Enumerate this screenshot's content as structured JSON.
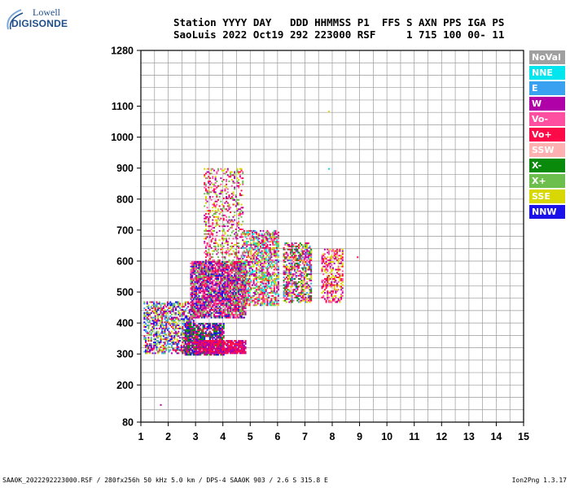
{
  "logo": {
    "top": "Lowell",
    "bottom": "DIGISONDE"
  },
  "header": {
    "line1": "Station YYYY DAY   DDD HHMMSS P1  FFS S AXN PPS IGA PS",
    "line2": "SaoLuis 2022 Oct19 292 223000 RSF     1 715 100 00- 11"
  },
  "legend": [
    {
      "label": "NoVal",
      "color": "#a0a0a0"
    },
    {
      "label": "NNE",
      "color": "#00e5ee"
    },
    {
      "label": "E",
      "color": "#3aa0f0"
    },
    {
      "label": "W",
      "color": "#b000a8"
    },
    {
      "label": "Vo-",
      "color": "#ff4fa0"
    },
    {
      "label": "Vo+",
      "color": "#ff0a48"
    },
    {
      "label": "SSW",
      "color": "#ffb0b0"
    },
    {
      "label": "X-",
      "color": "#0a8a0a"
    },
    {
      "label": "X+",
      "color": "#6cbf4c"
    },
    {
      "label": "SSE",
      "color": "#d8d800"
    },
    {
      "label": "NNW",
      "color": "#1a12e8"
    }
  ],
  "footer": {
    "left": "SAA0K_2022292223000.RSF / 280fx256h 50 kHz 5.0 km / DPS-4 SAA0K 903 / 2.6 S 315.8 E",
    "right": "Ion2Png 1.3.17"
  },
  "chart_data": {
    "type": "scatter",
    "xlim": [
      1,
      15
    ],
    "ylim": [
      80,
      1280
    ],
    "x_ticks": [
      1,
      2,
      3,
      4,
      5,
      6,
      7,
      8,
      9,
      10,
      11,
      12,
      13,
      14,
      15
    ],
    "y_ticks": [
      80,
      200,
      300,
      400,
      500,
      600,
      700,
      800,
      900,
      1000,
      1100,
      1280
    ],
    "grid": true,
    "legend_position": "right",
    "clusters": [
      {
        "x": [
          1.1,
          2.9
        ],
        "y": [
          305,
          470
        ],
        "series": [
          "W",
          "Vo+",
          "NNW",
          "E",
          "X+",
          "SSE"
        ],
        "density": 0.55
      },
      {
        "x": [
          2.6,
          4.0
        ],
        "y": [
          300,
          400
        ],
        "series": [
          "W",
          "Vo+",
          "NNW",
          "X-"
        ],
        "density": 0.8
      },
      {
        "x": [
          3.0,
          4.8
        ],
        "y": [
          305,
          345
        ],
        "series": [
          "W",
          "Vo+"
        ],
        "density": 0.9
      },
      {
        "x": [
          2.8,
          4.8
        ],
        "y": [
          420,
          600
        ],
        "series": [
          "W",
          "Vo+",
          "Vo-",
          "NNW",
          "X+"
        ],
        "density": 0.85
      },
      {
        "x": [
          3.3,
          4.7
        ],
        "y": [
          600,
          900
        ],
        "series": [
          "W",
          "Vo+",
          "Vo-",
          "SSE",
          "X+"
        ],
        "density": 0.3
      },
      {
        "x": [
          4.7,
          6.0
        ],
        "y": [
          460,
          700
        ],
        "series": [
          "Vo+",
          "Vo-",
          "W",
          "SSE",
          "X+",
          "NNE"
        ],
        "density": 0.6
      },
      {
        "x": [
          6.2,
          7.2
        ],
        "y": [
          470,
          660
        ],
        "series": [
          "Vo+",
          "Vo-",
          "W",
          "SSE",
          "X-",
          "E"
        ],
        "density": 0.6
      },
      {
        "x": [
          7.6,
          8.4
        ],
        "y": [
          470,
          640
        ],
        "series": [
          "Vo+",
          "Vo-",
          "W",
          "SSE"
        ],
        "density": 0.5
      }
    ],
    "outliers": [
      {
        "x": 1.7,
        "y": 138,
        "series": "W"
      },
      {
        "x": 7.85,
        "y": 1085,
        "series": "SSE"
      },
      {
        "x": 7.85,
        "y": 900,
        "series": "NNE"
      },
      {
        "x": 8.9,
        "y": 615,
        "series": "Vo+"
      },
      {
        "x": 8.15,
        "y": 472,
        "series": "W"
      }
    ]
  }
}
